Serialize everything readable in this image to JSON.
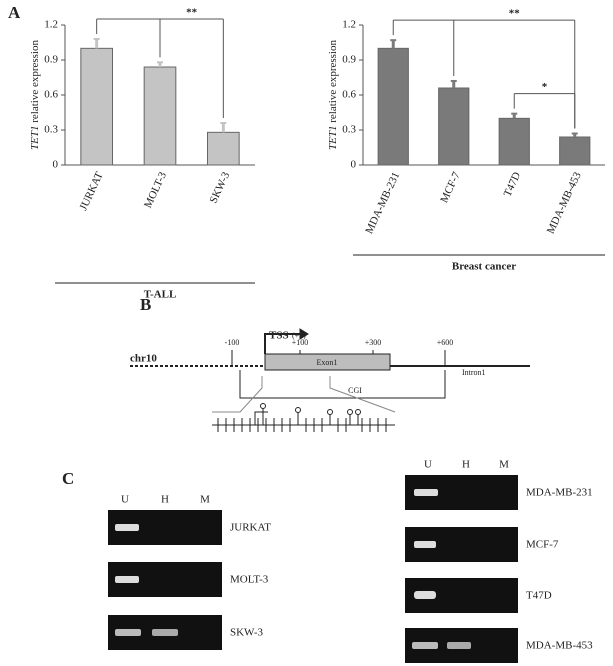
{
  "panel_labels": [
    "A",
    "B",
    "C"
  ],
  "chart_data": [
    {
      "type": "bar",
      "ylabel_italic": "TET1",
      "ylabel": "relative expression",
      "categories": [
        "JURKAT",
        "MOLT-3",
        "SKW-3"
      ],
      "values": [
        1.0,
        0.84,
        0.28
      ],
      "errors": [
        0.08,
        0.04,
        0.08
      ],
      "color": "#c4c4c4",
      "ylim": [
        0,
        1.2
      ],
      "yticks": [
        0,
        0.3,
        0.6,
        0.9,
        1.2
      ],
      "group_label": "T-ALL",
      "annotations": [
        {
          "text": "**",
          "from": 0,
          "to": [
            1,
            2
          ]
        }
      ]
    },
    {
      "type": "bar",
      "ylabel_italic": "TET1",
      "ylabel": "relative expression",
      "categories": [
        "MDA-MB-231",
        "MCF-7",
        "T47D",
        "MDA-MB-453"
      ],
      "values": [
        1.0,
        0.66,
        0.4,
        0.24
      ],
      "errors": [
        0.07,
        0.06,
        0.04,
        0.03
      ],
      "color": "#7a7a7a",
      "ylim": [
        0,
        1.2
      ],
      "yticks": [
        0,
        0.3,
        0.6,
        0.9,
        1.2
      ],
      "group_label": "Breast cancer",
      "annotations": [
        {
          "text": "**",
          "from": 0,
          "to": [
            1,
            3
          ]
        },
        {
          "text": "*",
          "from": 2,
          "to": [
            3
          ]
        }
      ]
    }
  ],
  "diagram": {
    "tss": "TSS",
    "tss_pos": "(+1)",
    "chrom": "chr10",
    "positions": [
      "-100",
      "+100",
      "+300",
      "+600"
    ],
    "exon": "Exon1",
    "intron": "Intron1",
    "cgi": "CGI"
  },
  "gels": {
    "lanes": [
      "U",
      "H",
      "M"
    ],
    "left_samples": [
      "JURKAT",
      "MOLT-3",
      "SKW-3"
    ],
    "right_samples": [
      "MDA-MB-231",
      "MCF-7",
      "T47D",
      "MDA-MB-453"
    ]
  }
}
